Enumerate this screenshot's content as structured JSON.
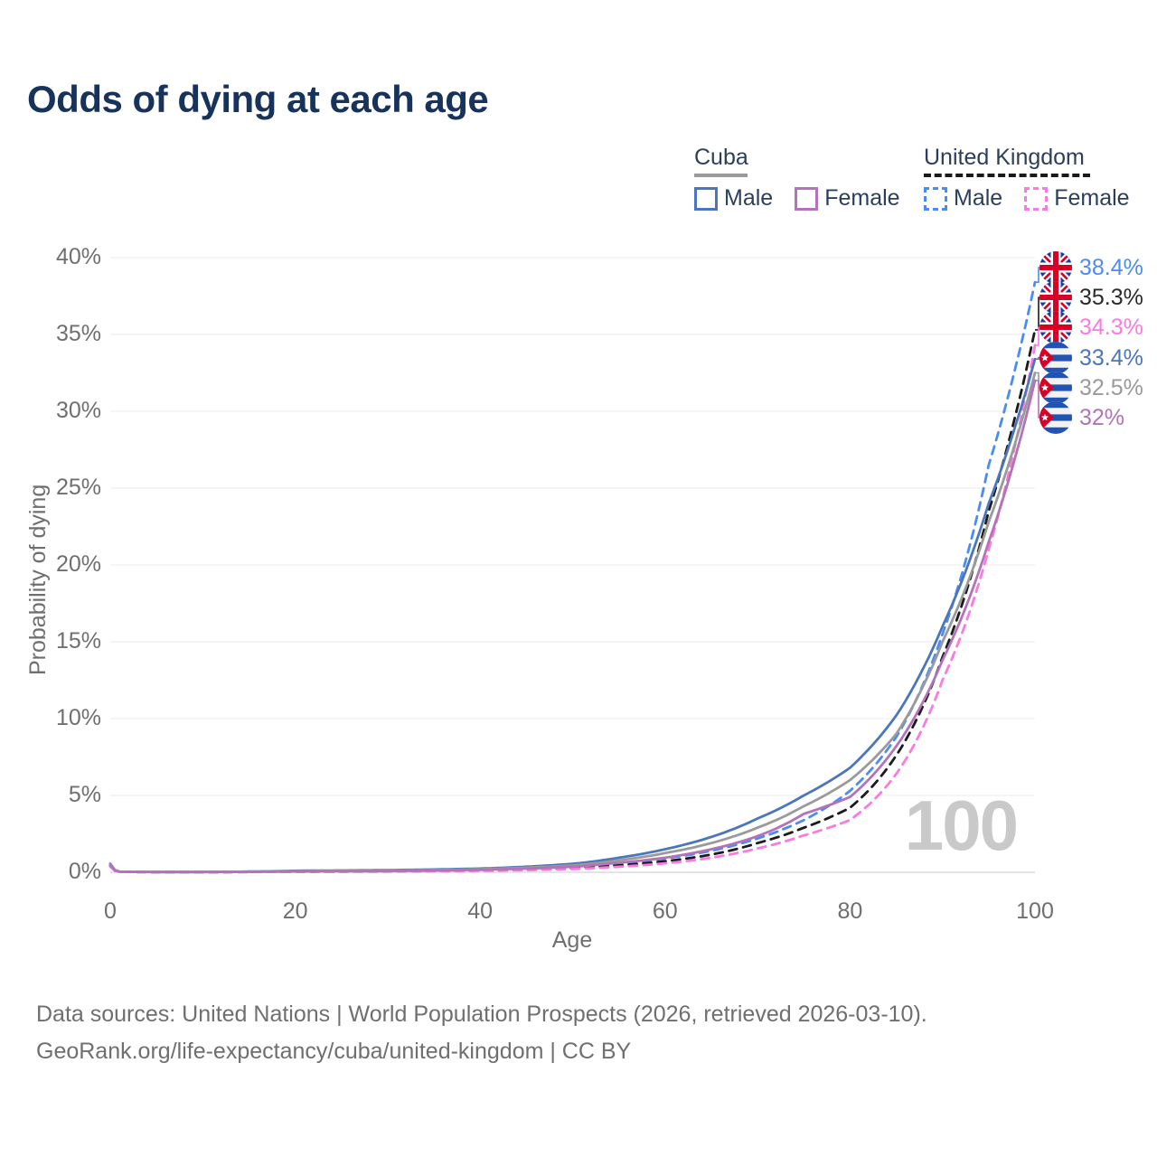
{
  "title": "Odds of dying at each age",
  "legend": {
    "groups": [
      {
        "label": "Cuba",
        "underline_color": "#9a9a9a",
        "underline_style": "solid",
        "items": [
          {
            "label": "Male",
            "color": "#4b76bb",
            "style": "solid"
          },
          {
            "label": "Female",
            "color": "#b273b8",
            "style": "solid"
          }
        ]
      },
      {
        "label": "United Kingdom",
        "underline_color": "#1a1a1a",
        "underline_style": "dashed",
        "items": [
          {
            "label": "Male",
            "color": "#4a8cf7",
            "style": "dashed"
          },
          {
            "label": "Female",
            "color": "#fa7ae1",
            "style": "dashed"
          }
        ]
      }
    ]
  },
  "chart_data": {
    "type": "line",
    "title": "Odds of dying at each age",
    "xlabel": "Age",
    "ylabel": "Probability of dying",
    "xlim": [
      0,
      100
    ],
    "ylim_pct": [
      0,
      40
    ],
    "grid": "horizontal",
    "watermark": "100",
    "x_ticks": [
      0,
      20,
      40,
      60,
      80,
      100
    ],
    "y_ticks": [
      {
        "value": 0,
        "label": "0%"
      },
      {
        "value": 5,
        "label": "5%"
      },
      {
        "value": 10,
        "label": "10%"
      },
      {
        "value": 15,
        "label": "15%"
      },
      {
        "value": 20,
        "label": "20%"
      },
      {
        "value": 25,
        "label": "25%"
      },
      {
        "value": 30,
        "label": "30%"
      },
      {
        "value": 35,
        "label": "35%"
      },
      {
        "value": 40,
        "label": "40%"
      }
    ],
    "series": [
      {
        "id": "uk-male",
        "name": "United Kingdom Male",
        "country": "United Kingdom",
        "sex": "Male",
        "color": "#4a8cf7",
        "dash": "dashed",
        "end_label": "38.4%",
        "ages": [
          0,
          1,
          5,
          10,
          20,
          30,
          40,
          50,
          55,
          60,
          65,
          70,
          75,
          80,
          85,
          90,
          95,
          100
        ],
        "values": [
          0.45,
          0.035,
          0.012,
          0.012,
          0.05,
          0.08,
          0.15,
          0.33,
          0.55,
          0.9,
          1.4,
          2.2,
          3.4,
          5.3,
          8.8,
          15.5,
          26.5,
          38.4
        ]
      },
      {
        "id": "uk-both",
        "name": "United Kingdom Both sexes",
        "country": "United Kingdom",
        "sex": "Both",
        "color": "#1b1b1b",
        "dash": "dashed",
        "end_label": "35.3%",
        "ages": [
          0,
          1,
          5,
          10,
          20,
          30,
          40,
          50,
          55,
          60,
          65,
          70,
          75,
          80,
          85,
          90,
          95,
          100
        ],
        "values": [
          0.4,
          0.03,
          0.01,
          0.01,
          0.04,
          0.06,
          0.12,
          0.27,
          0.45,
          0.72,
          1.15,
          1.9,
          2.9,
          4.2,
          7.6,
          14.0,
          23.5,
          35.3
        ]
      },
      {
        "id": "uk-female",
        "name": "United Kingdom Female",
        "country": "United Kingdom",
        "sex": "Female",
        "color": "#fa7ae1",
        "dash": "dashed",
        "end_label": "34.3%",
        "ages": [
          0,
          1,
          5,
          10,
          20,
          30,
          40,
          50,
          55,
          60,
          65,
          70,
          75,
          80,
          85,
          90,
          95,
          100
        ],
        "values": [
          0.37,
          0.027,
          0.009,
          0.009,
          0.03,
          0.045,
          0.09,
          0.21,
          0.36,
          0.58,
          0.95,
          1.55,
          2.4,
          3.4,
          6.4,
          12.5,
          21.0,
          34.3
        ]
      },
      {
        "id": "cuba-male",
        "name": "Cuba Male",
        "country": "Cuba",
        "sex": "Male",
        "color": "#4b76bb",
        "dash": "solid",
        "end_label": "33.4%",
        "ages": [
          0,
          1,
          5,
          10,
          20,
          30,
          40,
          50,
          55,
          60,
          65,
          70,
          75,
          80,
          85,
          90,
          95,
          100
        ],
        "values": [
          0.55,
          0.04,
          0.02,
          0.02,
          0.1,
          0.14,
          0.24,
          0.55,
          0.95,
          1.5,
          2.3,
          3.5,
          5.0,
          6.8,
          10.2,
          16.0,
          24.0,
          33.4
        ]
      },
      {
        "id": "cuba-both",
        "name": "Cuba Both sexes",
        "country": "Cuba",
        "sex": "Both",
        "color": "#9a9a9a",
        "dash": "solid",
        "end_label": "32.5%",
        "ages": [
          0,
          1,
          5,
          10,
          20,
          30,
          40,
          50,
          55,
          60,
          65,
          70,
          75,
          80,
          85,
          90,
          95,
          100
        ],
        "values": [
          0.5,
          0.038,
          0.018,
          0.018,
          0.08,
          0.11,
          0.2,
          0.45,
          0.78,
          1.25,
          1.9,
          2.9,
          4.3,
          6.0,
          9.0,
          15.0,
          22.8,
          32.5
        ]
      },
      {
        "id": "cuba-female",
        "name": "Cuba Female",
        "country": "Cuba",
        "sex": "Female",
        "color": "#b273b8",
        "dash": "solid",
        "end_label": "32%",
        "ages": [
          0,
          1,
          5,
          10,
          20,
          30,
          40,
          50,
          55,
          60,
          65,
          70,
          75,
          80,
          85,
          90,
          95,
          100
        ],
        "values": [
          0.45,
          0.035,
          0.016,
          0.016,
          0.05,
          0.08,
          0.16,
          0.36,
          0.62,
          0.95,
          1.5,
          2.35,
          3.8,
          4.9,
          8.2,
          13.8,
          21.5,
          32.0
        ]
      }
    ]
  },
  "end_labels": [
    {
      "value": "38.4%",
      "color": "#4a8cf7",
      "flag": "uk-flag-icon"
    },
    {
      "value": "35.3%",
      "color": "#2a2a2a",
      "flag": "uk-flag-icon"
    },
    {
      "value": "34.3%",
      "color": "#fa7ae1",
      "flag": "uk-flag-icon"
    },
    {
      "value": "33.4%",
      "color": "#4b76bb",
      "flag": "cuba-flag-icon"
    },
    {
      "value": "32.5%",
      "color": "#9a9a9a",
      "flag": "cuba-flag-icon"
    },
    {
      "value": "32%",
      "color": "#b273b8",
      "flag": "cuba-flag-icon"
    }
  ],
  "axes": {
    "x_title": "Age",
    "y_title": "Probability of dying"
  },
  "footer": {
    "line1": "Data sources: United Nations | World Population Prospects (2026, retrieved 2026-03-10).",
    "line2": "GeoRank.org/life-expectancy/cuba/united-kingdom | CC BY"
  }
}
